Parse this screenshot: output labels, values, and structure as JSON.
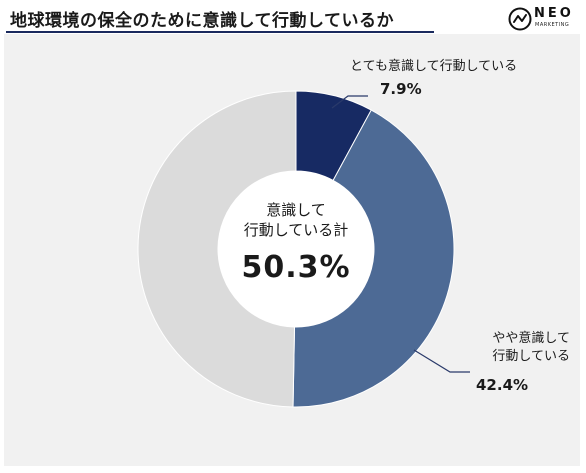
{
  "header": {
    "title": "地球環境の保全のために意識して行動しているか",
    "logo_text": "NEO",
    "logo_sub": "MARKETING"
  },
  "colors": {
    "title_rule": "#1a2a5e",
    "frame_bg": "#f1f1f1",
    "slice_very": "#172a63",
    "slice_somewhat": "#4d6a95",
    "slice_rest": "#dbdbdb",
    "hole": "#ffffff"
  },
  "chart_data": {
    "type": "pie",
    "variant": "donut",
    "title": "地球環境の保全のために意識して行動しているか",
    "slices": [
      {
        "label": "とても意識して行動している",
        "value": 7.9,
        "value_label": "7.9%",
        "color": "#172a63"
      },
      {
        "label": "やや意識して行動している",
        "value": 42.4,
        "value_label": "42.4%",
        "color": "#4d6a95"
      },
      {
        "label": "",
        "value": 49.7,
        "value_label": "",
        "color": "#dbdbdb"
      }
    ],
    "center_label": "意識して行動している計",
    "center_label_lines": [
      "意識して",
      "行動している計"
    ],
    "center_value": "50.3%",
    "annotations": [
      {
        "text": "とても意識して行動している",
        "value": "7.9%"
      },
      {
        "text": "やや意識して行動している",
        "value": "42.4%"
      }
    ],
    "callout_lines": [
      [
        "とても意識して行動している"
      ],
      [
        "やや意識して",
        "行動している"
      ]
    ]
  }
}
